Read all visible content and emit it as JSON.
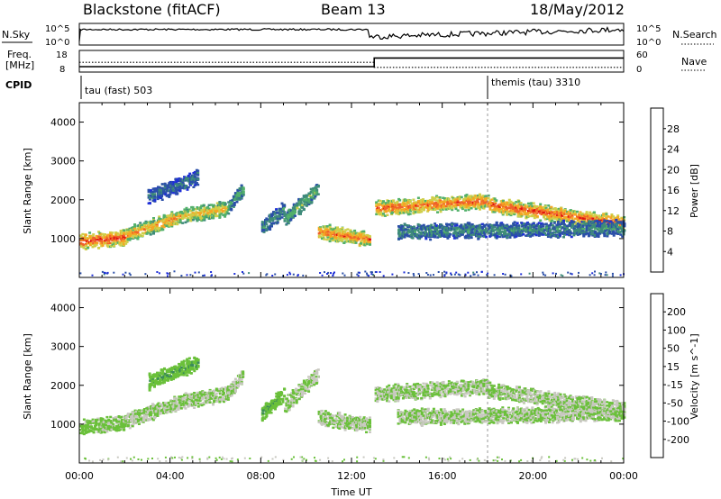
{
  "header": {
    "station": "Blackstone (fitACF)",
    "beam": "Beam 13",
    "date": "18/May/2012"
  },
  "noise_panel": {
    "left_label": "N.Sky",
    "right_label": "N.Search",
    "left_ticks": [
      "10^5",
      "10^0"
    ],
    "right_ticks": [
      "10^5",
      "10^0"
    ]
  },
  "freq_panel": {
    "left_label_line1": "Freq.",
    "left_label_line2": "[MHz]",
    "left_ticks": [
      "18",
      "8"
    ],
    "right_label": "Nave",
    "right_ticks": [
      "60",
      "0"
    ]
  },
  "cpid_panel": {
    "label": "CPID",
    "segments": [
      {
        "label": "tau (fast) 503",
        "start": 0
      },
      {
        "label": "themis (tau) 3310",
        "start": 18
      }
    ]
  },
  "x_axis": {
    "title": "Time UT",
    "ticks": [
      "00:00",
      "04:00",
      "08:00",
      "12:00",
      "16:00",
      "20:00",
      "00:00"
    ]
  },
  "power_panel": {
    "ylabel": "Slant Range [km]",
    "yticks": [
      "1000",
      "2000",
      "3000",
      "4000"
    ],
    "colorbar_label": "Power [dB]",
    "colorbar_ticks": [
      "28",
      "24",
      "20",
      "16",
      "12",
      "8",
      "4"
    ],
    "colors": [
      "#1f2fd8",
      "#2b4fa8",
      "#3e8a7a",
      "#52b06a",
      "#cfcf4a",
      "#f5a623",
      "#f0622a",
      "#e01010"
    ]
  },
  "velocity_panel": {
    "ylabel": "Slant Range [km]",
    "yticks": [
      "1000",
      "2000",
      "3000",
      "4000"
    ],
    "colorbar_label": "Velocity [m s^-1]",
    "colorbar_ticks": [
      "200",
      "100",
      "50",
      "15",
      "-15",
      "-50",
      "-100",
      "-200"
    ],
    "colors": [
      "#1f3fd0",
      "#2a6aa0",
      "#3a8a5a",
      "#6ac03a",
      "#c8c8c0",
      "#f5a020",
      "#f06020",
      "#e01818"
    ]
  },
  "chart_data": {
    "type": "heatmap",
    "x_units": "hours UT",
    "xlim": [
      0,
      24
    ],
    "ylim": [
      0,
      4500
    ],
    "y_units": "km",
    "mode_change_hour": 13,
    "cpid_change_hour": 18,
    "power_scale": [
      0,
      30
    ],
    "velocity_scale": [
      -250,
      250
    ],
    "freq_mhz": [
      {
        "start": 0,
        "end": 13,
        "value": 10.5
      },
      {
        "start": 13,
        "end": 24,
        "value": 14.5
      }
    ],
    "nave": [
      {
        "start": 0,
        "end": 13,
        "value": 27
      },
      {
        "start": 13,
        "end": 24,
        "value": 13
      }
    ],
    "echo_bands": [
      {
        "t_start": 0.0,
        "t_end": 2.0,
        "r_start": 950,
        "r_end": 1050,
        "power": 27,
        "velocity": -15
      },
      {
        "t_start": 2.0,
        "t_end": 4.5,
        "r_start": 1100,
        "r_end": 1600,
        "power": 22,
        "velocity": 0
      },
      {
        "t_start": 4.5,
        "t_end": 6.5,
        "r_start": 1600,
        "r_end": 1800,
        "power": 20,
        "velocity": 0
      },
      {
        "t_start": 6.5,
        "t_end": 7.2,
        "r_start": 1800,
        "r_end": 2300,
        "power": 12,
        "velocity": 0
      },
      {
        "t_start": 3.0,
        "t_end": 5.2,
        "r_start": 2100,
        "r_end": 2600,
        "power": 8,
        "velocity": -60
      },
      {
        "t_start": 8.0,
        "t_end": 9.0,
        "r_start": 1300,
        "r_end": 1800,
        "power": 10,
        "velocity": -60
      },
      {
        "t_start": 9.0,
        "t_end": 10.5,
        "r_start": 1500,
        "r_end": 2300,
        "power": 14,
        "velocity": 0
      },
      {
        "t_start": 10.5,
        "t_end": 12.8,
        "r_start": 1200,
        "r_end": 1000,
        "power": 24,
        "velocity": 0
      },
      {
        "t_start": 13.0,
        "t_end": 18.0,
        "r_start": 1800,
        "r_end": 2000,
        "power": 25,
        "velocity": 0
      },
      {
        "t_start": 18.0,
        "t_end": 24.0,
        "r_start": 1900,
        "r_end": 1400,
        "power": 26,
        "velocity": 0
      },
      {
        "t_start": 14.0,
        "t_end": 24.0,
        "r_start": 1200,
        "r_end": 1300,
        "power": 10,
        "velocity": 0
      }
    ]
  }
}
